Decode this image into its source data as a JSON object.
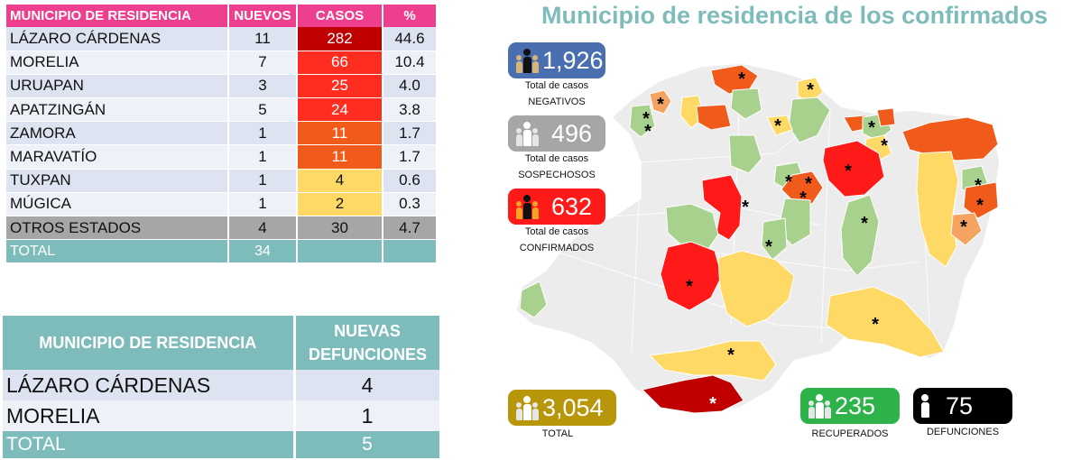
{
  "title": "Municipio de residencia de los confirmados",
  "table1": {
    "headers": [
      "MUNICIPIO DE RESIDENCIA",
      "NUEVOS",
      "CASOS",
      "%"
    ],
    "rows": [
      {
        "municipio": "LÁZARO CÁRDENAS",
        "nuevos": "11",
        "casos": "282",
        "pct": "44.6",
        "color": "#c00000"
      },
      {
        "municipio": "MORELIA",
        "nuevos": "7",
        "casos": "66",
        "pct": "10.4",
        "color": "#ff2d20"
      },
      {
        "municipio": "URUAPAN",
        "nuevos": "3",
        "casos": "25",
        "pct": "4.0",
        "color": "#ff2d20"
      },
      {
        "municipio": "APATZINGÁN",
        "nuevos": "5",
        "casos": "24",
        "pct": "3.8",
        "color": "#ff2d20"
      },
      {
        "municipio": "ZAMORA",
        "nuevos": "1",
        "casos": "11",
        "pct": "1.7",
        "color": "#f05a1a"
      },
      {
        "municipio": "MARAVATÍO",
        "nuevos": "1",
        "casos": "11",
        "pct": "1.7",
        "color": "#f05a1a"
      },
      {
        "municipio": "TUXPAN",
        "nuevos": "1",
        "casos": "4",
        "pct": "0.6",
        "color": "#ffd966"
      },
      {
        "municipio": "MÚGICA",
        "nuevos": "1",
        "casos": "2",
        "pct": "0.3",
        "color": "#ffd966"
      }
    ],
    "otros": {
      "municipio": "OTROS ESTADOS",
      "nuevos": "4",
      "casos": "30",
      "pct": "4.7"
    },
    "total": {
      "label": "TOTAL",
      "nuevos": "34"
    }
  },
  "table2": {
    "headers": [
      "MUNICIPIO DE RESIDENCIA",
      "NUEVAS DEFUNCIONES"
    ],
    "rows": [
      {
        "municipio": "LÁZARO CÁRDENAS",
        "defunciones": "4"
      },
      {
        "municipio": "MORELIA",
        "defunciones": "1"
      }
    ],
    "total": {
      "label": "TOTAL",
      "defunciones": "5"
    }
  },
  "stats": {
    "negativos": {
      "value": "1,926",
      "label_line1": "Total de casos",
      "label_line2": "NEGATIVOS",
      "color": "#4a6fb0"
    },
    "sospechosos": {
      "value": "496",
      "label_line1": "Total de casos",
      "label_line2": "SOSPECHOSOS",
      "color": "#a6a6a6"
    },
    "confirmados": {
      "value": "632",
      "label_line1": "Total de casos",
      "label_line2": "CONFIRMADOS",
      "color": "#ff1a1a"
    },
    "total": {
      "value": "3,054",
      "label": "TOTAL",
      "color": "#b8960a"
    },
    "recuperados": {
      "value": "235",
      "label": "RECUPERADOS",
      "color": "#2db34a"
    },
    "defunciones": {
      "value": "75",
      "label": "DEFUNCIONES",
      "color": "#000000"
    }
  },
  "map_colors": {
    "none": "#ececec",
    "green": "#a9d18e",
    "yellow": "#ffd966",
    "light_orange": "#f4a460",
    "orange": "#f05a1a",
    "red": "#ff1a1a",
    "dark_red": "#c00000"
  },
  "marker_symbol": "*"
}
